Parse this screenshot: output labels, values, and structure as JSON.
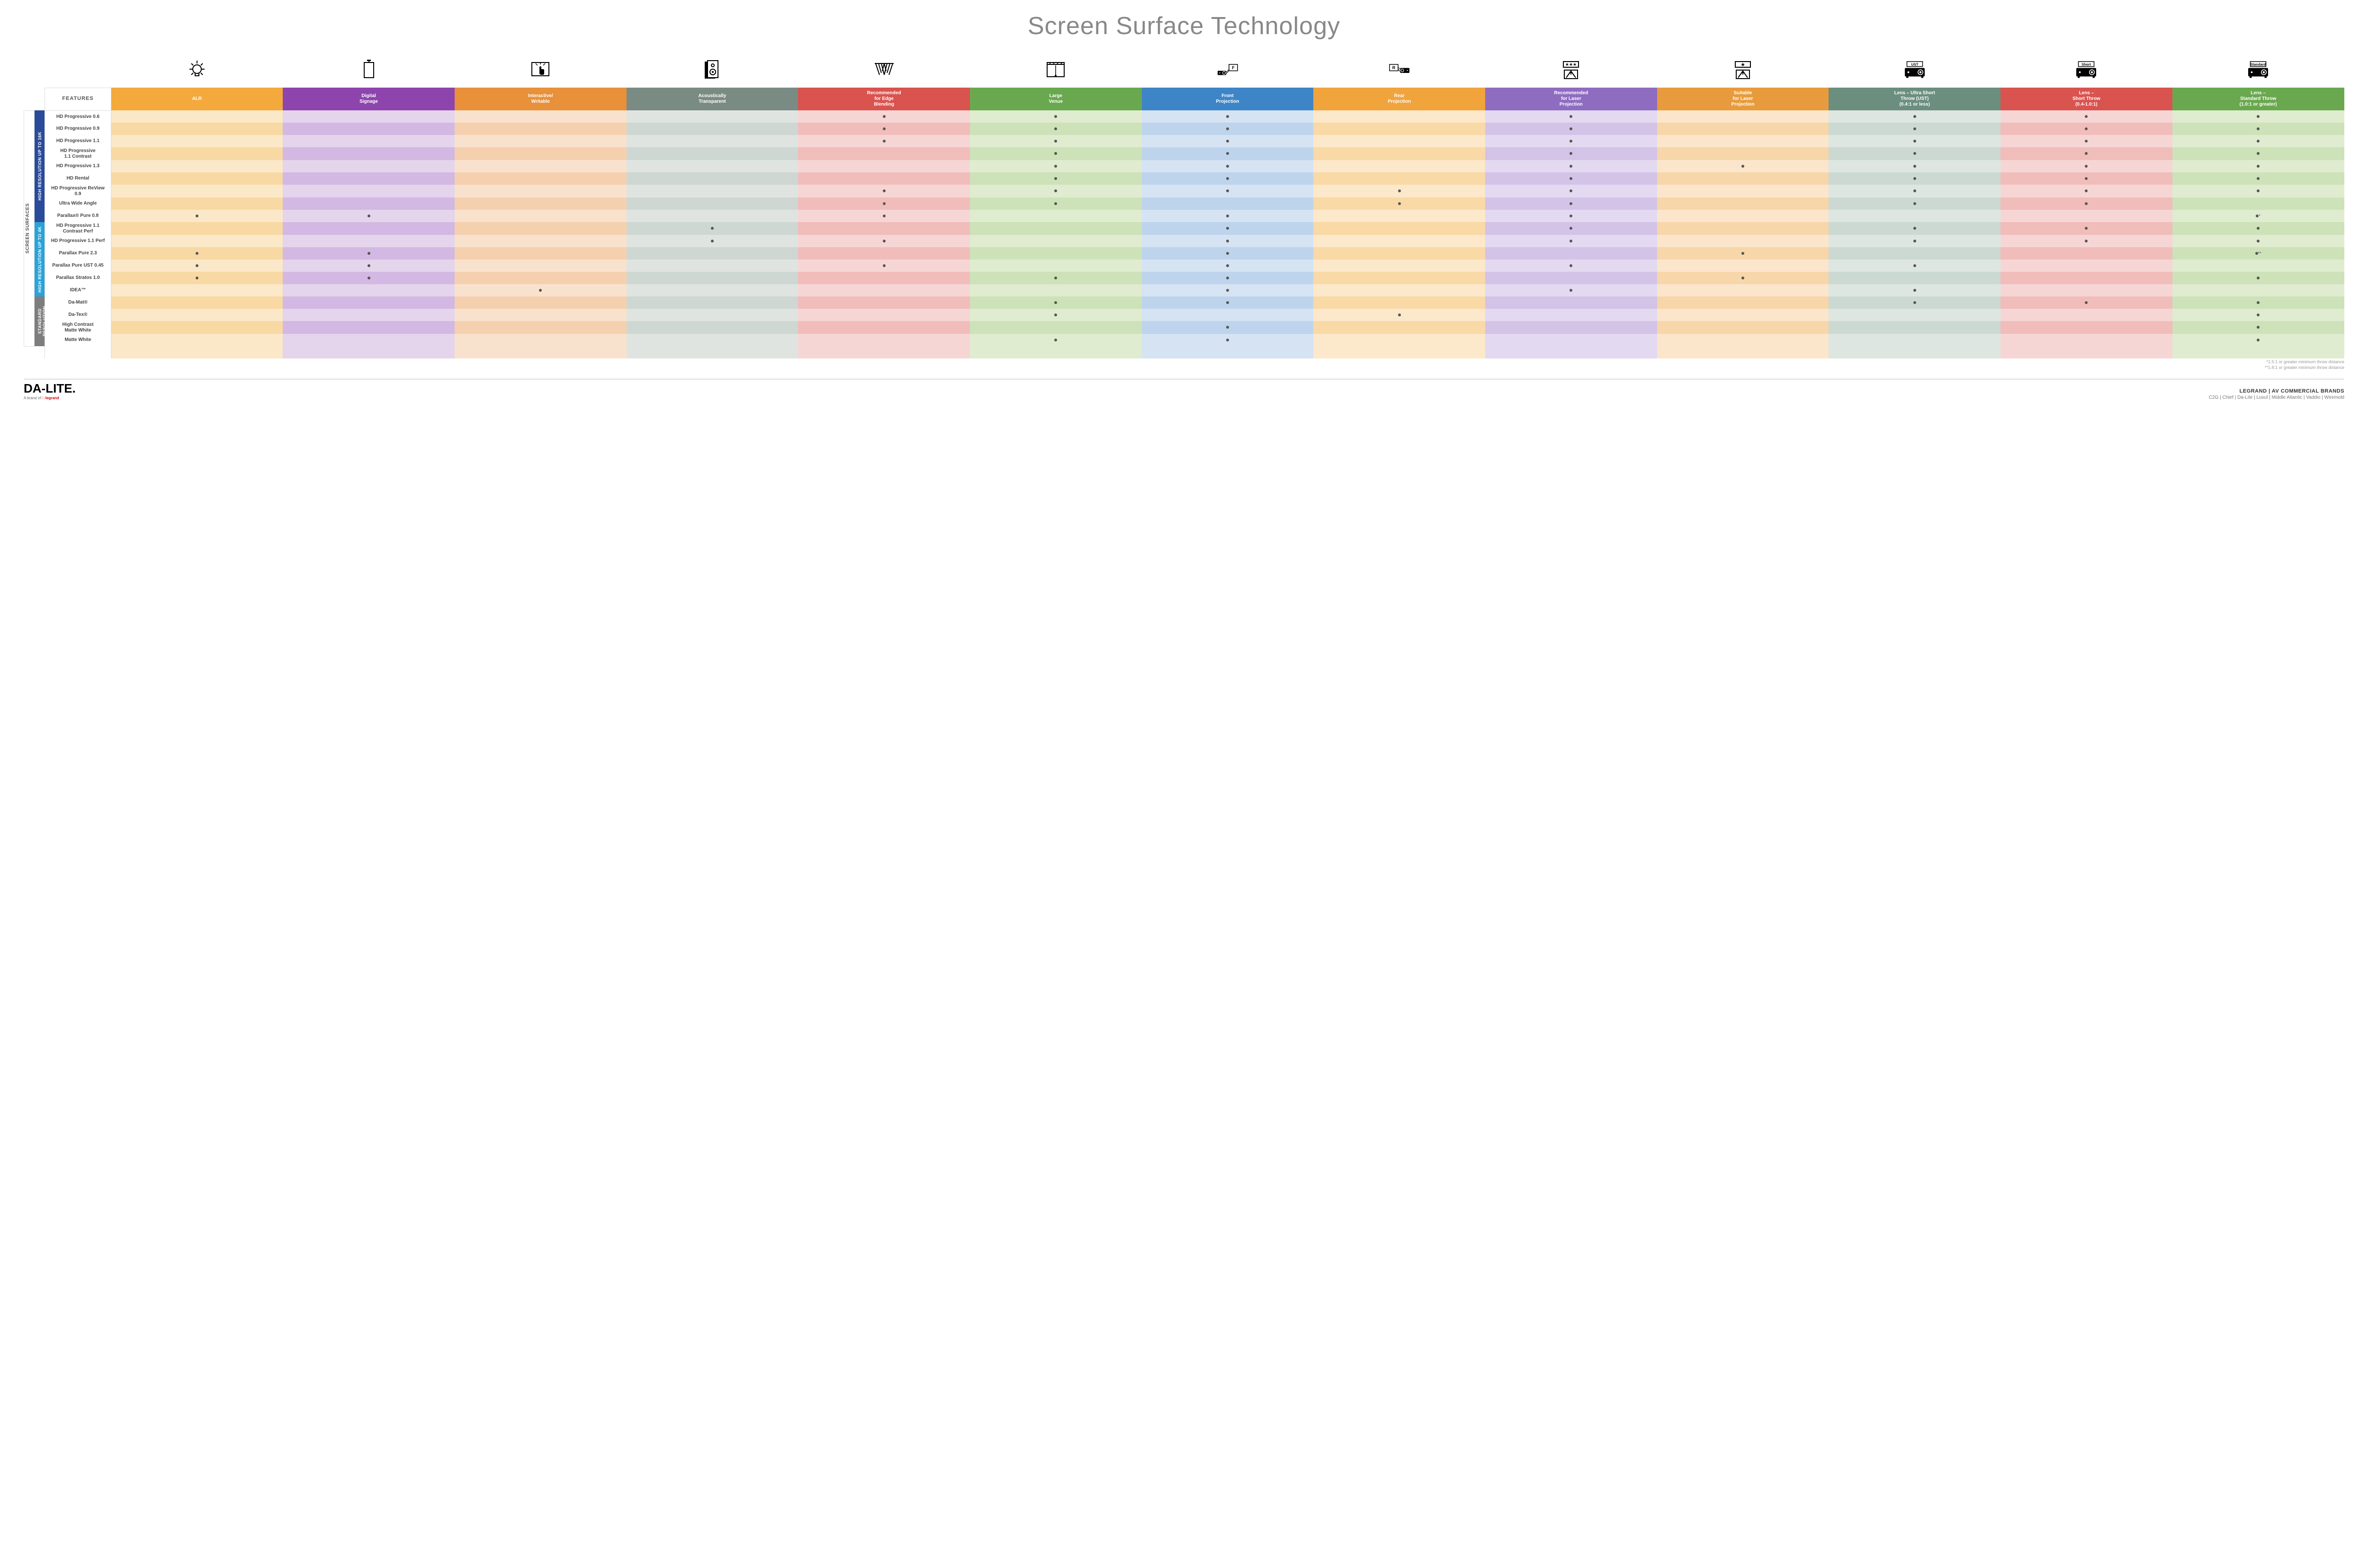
{
  "title": "Screen Surface Technology",
  "featuresHeader": "FEATURES",
  "sideOuter": "SCREEN SURFACES",
  "columns": [
    {
      "key": "alr",
      "label": "ALR",
      "hdr": "#f4a93c",
      "light": "#fbe8c8",
      "dark": "#f8d9a3",
      "icon": "bulb"
    },
    {
      "key": "dsign",
      "label": "Digital\nSignage",
      "hdr": "#8e44ad",
      "light": "#e4d4ec",
      "dark": "#d2b8e2",
      "icon": "signage"
    },
    {
      "key": "inter",
      "label": "Interactive/\nWritable",
      "hdr": "#e8903a",
      "light": "#f9e2cd",
      "dark": "#f5d0ae",
      "icon": "touch"
    },
    {
      "key": "acous",
      "label": "Acoustically\nTransparent",
      "hdr": "#7a8b84",
      "light": "#dfe4e1",
      "dark": "#cfd7d3",
      "icon": "speaker"
    },
    {
      "key": "edge",
      "label": "Recommended\nfor Edge\nBlending",
      "hdr": "#d9534f",
      "light": "#f6d6d5",
      "dark": "#f0bdbb",
      "icon": "edge"
    },
    {
      "key": "large",
      "label": "Large\nVenue",
      "hdr": "#6aa84f",
      "light": "#dfeccf",
      "dark": "#cde2b8",
      "icon": "venue"
    },
    {
      "key": "front",
      "label": "Front\nProjection",
      "hdr": "#3d85c6",
      "light": "#d5e3f3",
      "dark": "#bdd4ec",
      "icon": "front"
    },
    {
      "key": "rear",
      "label": "Rear\nProjection",
      "hdr": "#f1a33c",
      "light": "#fce8ca",
      "dark": "#f9d9a6",
      "icon": "rear"
    },
    {
      "key": "rlas",
      "label": "Recommended\nfor Laser\nProjection",
      "hdr": "#8e6cc0",
      "light": "#e3d9f0",
      "dark": "#d3c3e7",
      "icon": "laser3"
    },
    {
      "key": "slas",
      "label": "Suitable\nfor Laser\nProjection",
      "hdr": "#e89b3c",
      "light": "#fbe6cc",
      "dark": "#f7d6a9",
      "icon": "laser1"
    },
    {
      "key": "ust",
      "label": "Lens – Ultra Short\nThrow (UST)\n(0.4:1 or less)",
      "hdr": "#6b8e7f",
      "light": "#dde6e1",
      "dark": "#ccd9d2",
      "icon": "lensUST"
    },
    {
      "key": "short",
      "label": "Lens –\nShort Throw\n(0.4-1.0:1)",
      "hdr": "#d9534f",
      "light": "#f6d6d5",
      "dark": "#f0bdbb",
      "icon": "lensShort"
    },
    {
      "key": "std",
      "label": "Lens –\nStandard Throw\n(1.0:1 or greater)",
      "hdr": "#6aa84f",
      "light": "#dfeccf",
      "dark": "#cde2b8",
      "icon": "lensStd"
    }
  ],
  "groups": [
    {
      "label": "HIGH RESOLUTION UP TO 16K",
      "color": "#2a4b9b",
      "span": 9
    },
    {
      "label": "HIGH RESOLUTION UP TO 4K",
      "color": "#2aa3d9",
      "span": 6
    },
    {
      "label": "STANDARD\nRESOLUTION",
      "color": "#7d7d7d",
      "span": 4
    }
  ],
  "rows": [
    {
      "label": "HD Progressive 0.6",
      "dots": {
        "edge": "•",
        "large": "•",
        "front": "•",
        "rlas": "•",
        "ust": "•",
        "short": "•",
        "std": "•"
      }
    },
    {
      "label": "HD Progressive 0.9",
      "dots": {
        "edge": "•",
        "large": "•",
        "front": "•",
        "rlas": "•",
        "ust": "•",
        "short": "•",
        "std": "•"
      }
    },
    {
      "label": "HD Progressive 1.1",
      "dots": {
        "edge": "•",
        "large": "•",
        "front": "•",
        "rlas": "•",
        "ust": "•",
        "short": "•",
        "std": "•"
      }
    },
    {
      "label": "HD Progressive\n1.1 Contrast",
      "dots": {
        "large": "•",
        "front": "•",
        "rlas": "•",
        "ust": "•",
        "short": "•",
        "std": "•"
      }
    },
    {
      "label": "HD Progressive 1.3",
      "dots": {
        "large": "•",
        "front": "•",
        "rlas": "•",
        "slas": "•",
        "ust": "•",
        "short": "•",
        "std": "•"
      }
    },
    {
      "label": "HD Rental",
      "dots": {
        "large": "•",
        "front": "•",
        "rlas": "•",
        "ust": "•",
        "short": "•",
        "std": "•"
      }
    },
    {
      "label": "HD Progressive ReView 0.9",
      "dots": {
        "edge": "•",
        "large": "•",
        "front": "•",
        "rear": "•",
        "rlas": "•",
        "ust": "•",
        "short": "•",
        "std": "•"
      }
    },
    {
      "label": "Ultra Wide Angle",
      "dots": {
        "edge": "•",
        "large": "•",
        "rear": "•",
        "rlas": "•",
        "ust": "•",
        "short": "•"
      }
    },
    {
      "label": "Parallax® Pure 0.8",
      "dots": {
        "alr": "•",
        "dsign": "•",
        "edge": "•",
        "front": "•",
        "rlas": "•",
        "std": "•*"
      }
    },
    {
      "label": "HD Progressive 1.1\nContrast Perf",
      "dots": {
        "acous": "•",
        "front": "•",
        "rlas": "•",
        "ust": "•",
        "short": "•",
        "std": "•"
      }
    },
    {
      "label": "HD Progressive 1.1 Perf",
      "dots": {
        "acous": "•",
        "edge": "•",
        "front": "•",
        "rlas": "•",
        "ust": "•",
        "short": "•",
        "std": "•"
      }
    },
    {
      "label": "Parallax Pure 2.3",
      "dots": {
        "alr": "•",
        "dsign": "•",
        "front": "•",
        "slas": "•",
        "std": "•**"
      }
    },
    {
      "label": "Parallax Pure UST 0.45",
      "dots": {
        "alr": "•",
        "dsign": "•",
        "edge": "•",
        "front": "•",
        "rlas": "•",
        "ust": "•"
      }
    },
    {
      "label": "Parallax Stratos 1.0",
      "dots": {
        "alr": "•",
        "dsign": "•",
        "large": "•",
        "front": "•",
        "slas": "•",
        "std": "•"
      }
    },
    {
      "label": "IDEA™",
      "dots": {
        "inter": "•",
        "front": "•",
        "rlas": "•",
        "ust": "•"
      }
    },
    {
      "label": "Da-Mat®",
      "dots": {
        "large": "•",
        "front": "•",
        "ust": "•",
        "short": "•",
        "std": "•"
      }
    },
    {
      "label": "Da-Tex®",
      "dots": {
        "large": "•",
        "rear": "•",
        "std": "•"
      }
    },
    {
      "label": "High Contrast\nMatte White",
      "dots": {
        "front": "•",
        "std": "•"
      }
    },
    {
      "label": "Matte White",
      "dots": {
        "large": "•",
        "front": "•",
        "std": "•"
      }
    }
  ],
  "footnotes": [
    "*1.5:1 or greater minimum throw distance",
    "**1.8:1 or greater minimum throw distance"
  ],
  "footer": {
    "brand": "DA-LITE.",
    "brandSubPrefix": "A brand of ",
    "brandSubLogo": "legrand",
    "rightMain": "LEGRAND | AV COMMERCIAL BRANDS",
    "rightBrands": "C2G  |  Chief  |  Da-Lite  |  Luxul  |  Middle Atlantic  |  Vaddio  |  Wiremold"
  }
}
